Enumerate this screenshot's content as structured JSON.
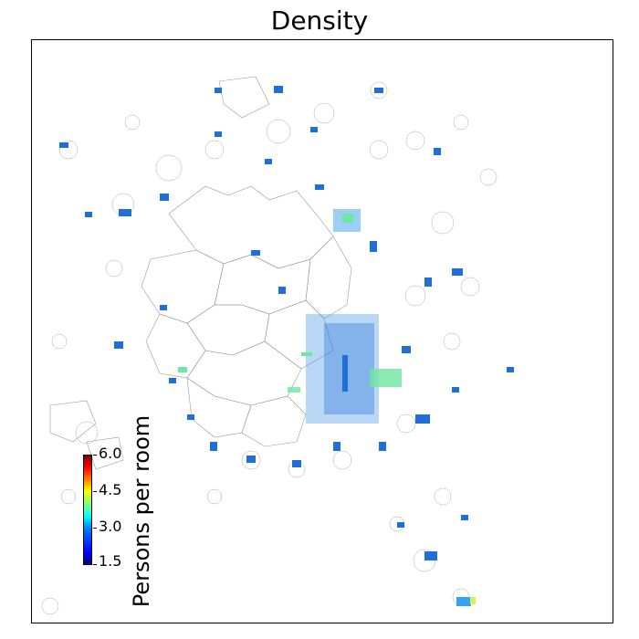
{
  "title": "Density",
  "colorbar": {
    "label": "Persons per room",
    "ticks": [
      "6.0",
      "4.5",
      "3.0",
      "1.5"
    ],
    "min": 1.5,
    "max": 6.0,
    "colormap": "jet"
  },
  "colors": {
    "boundary": "#888888",
    "low": "#1f6fd6",
    "mid": "#3aa0f0",
    "high": "#6fe6a0",
    "peak": "#d6f05a"
  }
}
